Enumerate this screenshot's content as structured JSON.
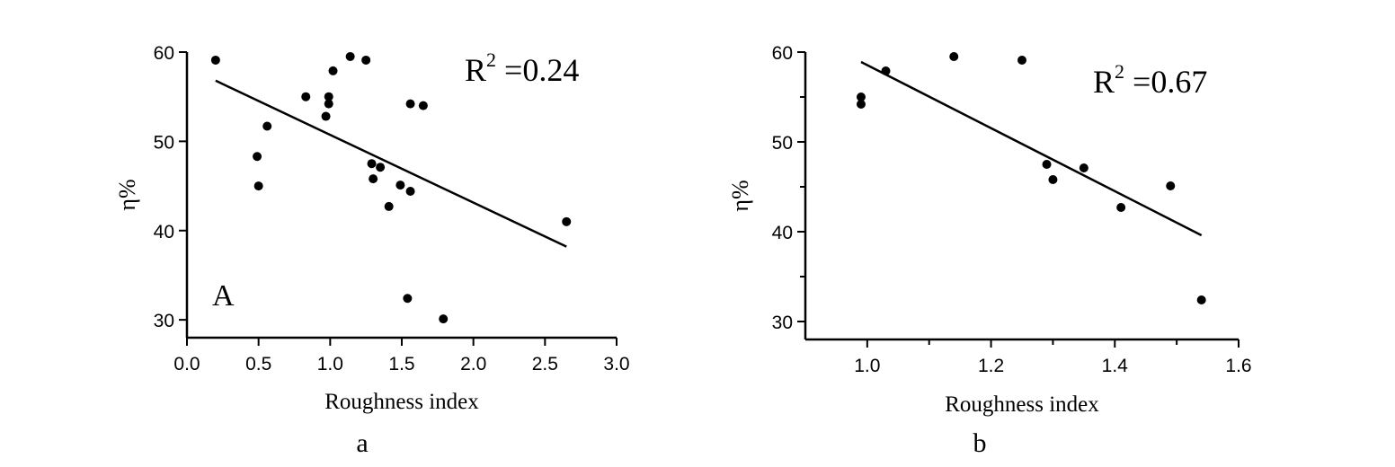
{
  "chart_data": [
    {
      "type": "scatter",
      "panel_label": "a",
      "inset_label": "A",
      "xlabel": "Roughness index",
      "ylabel": "η%",
      "xlim": [
        0.0,
        3.0
      ],
      "ylim": [
        28,
        60
      ],
      "x_ticks": [
        0.0,
        0.5,
        1.0,
        1.5,
        2.0,
        2.5,
        3.0
      ],
      "x_tick_labels": [
        "0.0",
        "0.5",
        "1.0",
        "1.5",
        "2.0",
        "2.5",
        "3.0"
      ],
      "y_ticks": [
        30,
        40,
        50,
        60
      ],
      "y_tick_labels": [
        "30",
        "40",
        "50",
        "60"
      ],
      "r2_label": "R",
      "r2_sup": "2",
      "r2_value": " =0.24",
      "grid": false,
      "x": [
        0.2,
        0.49,
        0.5,
        0.56,
        0.83,
        0.97,
        0.99,
        0.99,
        1.02,
        1.14,
        1.25,
        1.29,
        1.3,
        1.35,
        1.41,
        1.49,
        1.54,
        1.56,
        1.56,
        1.65,
        1.79,
        2.65
      ],
      "y": [
        59.1,
        48.3,
        45.0,
        51.7,
        55.0,
        52.8,
        54.2,
        55.0,
        57.9,
        59.5,
        59.1,
        47.5,
        45.8,
        47.1,
        42.7,
        45.1,
        32.4,
        44.4,
        54.2,
        54.0,
        30.1,
        41.0
      ],
      "fit": {
        "x": [
          0.2,
          2.65
        ],
        "y": [
          56.8,
          38.2
        ]
      }
    },
    {
      "type": "scatter",
      "panel_label": "b",
      "xlabel": "Roughness index",
      "ylabel": "η%",
      "xlim": [
        0.9,
        1.6
      ],
      "ylim": [
        28,
        60
      ],
      "x_ticks": [
        1.0,
        1.2,
        1.4,
        1.6
      ],
      "x_tick_labels": [
        "1.0",
        "1.2",
        "1.4",
        "1.6"
      ],
      "x_minor_ticks": [
        1.1,
        1.3,
        1.5
      ],
      "y_ticks": [
        30,
        40,
        50,
        60
      ],
      "y_tick_labels": [
        "30",
        "40",
        "50",
        "60"
      ],
      "y_minor_ticks": [
        35,
        45,
        55
      ],
      "r2_label": "R",
      "r2_sup": "2",
      "r2_value": " =0.67",
      "grid": false,
      "x": [
        0.99,
        0.99,
        1.03,
        1.14,
        1.25,
        1.29,
        1.3,
        1.35,
        1.41,
        1.49,
        1.54
      ],
      "y": [
        55.0,
        54.2,
        57.9,
        59.5,
        59.1,
        47.5,
        45.8,
        47.1,
        42.7,
        45.1,
        32.4
      ],
      "fit": {
        "x": [
          0.99,
          1.54
        ],
        "y": [
          58.9,
          39.6
        ]
      }
    }
  ]
}
